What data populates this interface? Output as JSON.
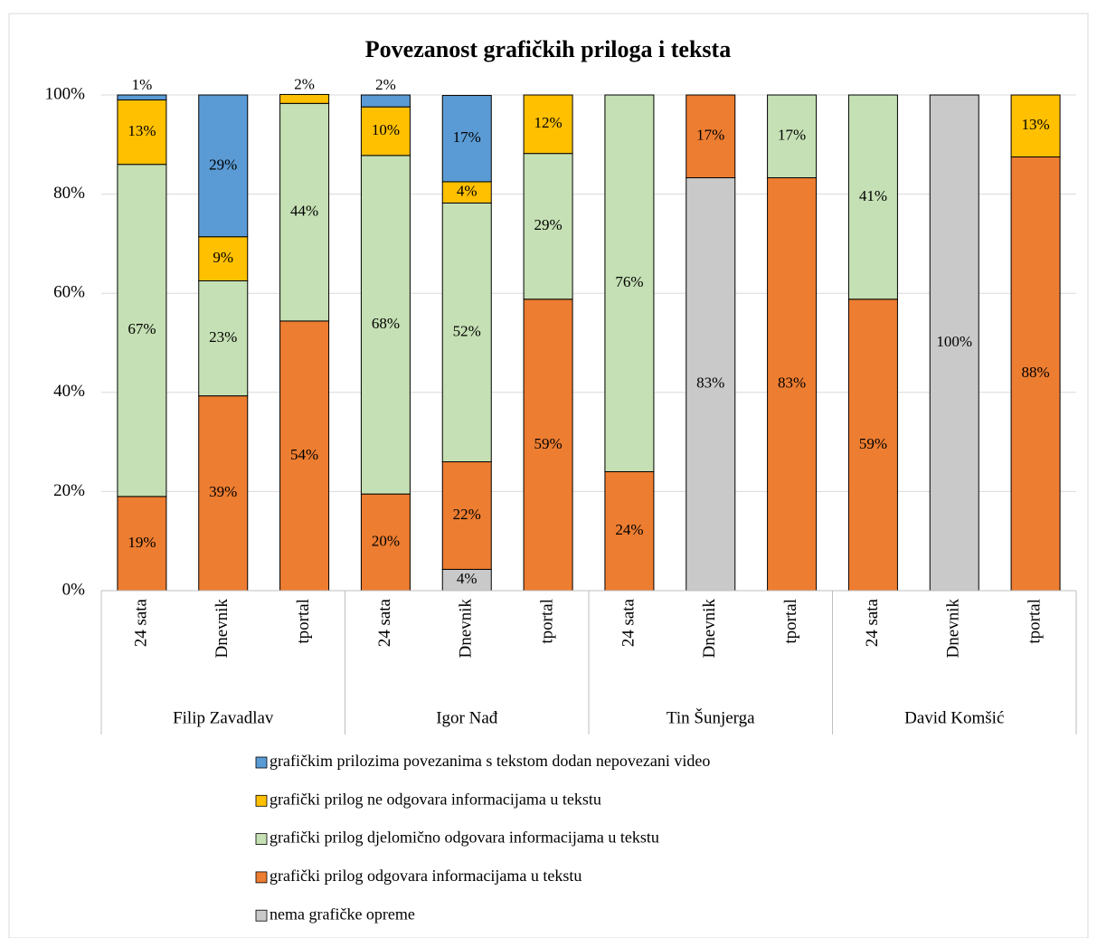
{
  "chart_data": {
    "type": "stacked_bar",
    "title": "Povezanost grafičkih priloga i teksta",
    "groups": [
      "Filip Zavadlav",
      "Igor Nađ",
      "Tin Šunjerga",
      "David Komšić"
    ],
    "categories": [
      "24 sata",
      "Dnevnik",
      "tportal",
      "24 sata",
      "Dnevnik",
      "tportal",
      "24 sata",
      "Dnevnik",
      "tportal",
      "24 sata",
      "Dnevnik",
      "tportal"
    ],
    "ylim": [
      0,
      100
    ],
    "yticks": [
      {
        "value": 0,
        "label": "0%"
      },
      {
        "value": 20,
        "label": "20%"
      },
      {
        "value": 40,
        "label": "40%"
      },
      {
        "value": 60,
        "label": "60%"
      },
      {
        "value": 80,
        "label": "80%"
      },
      {
        "value": 100,
        "label": "100%"
      }
    ],
    "grid": true,
    "series": [
      {
        "name": "nema grafičke opreme",
        "color": "#c9c9c9",
        "values": [
          null,
          null,
          null,
          null,
          4.3,
          null,
          null,
          83.3,
          null,
          null,
          100,
          null
        ],
        "value_labels": [
          null,
          null,
          null,
          null,
          "4%",
          null,
          null,
          "83%",
          null,
          null,
          "100%",
          null
        ]
      },
      {
        "name": "grafički prilog odgovara informacijama u tekstu",
        "color": "#ed7d31",
        "values": [
          19,
          39.3,
          54.4,
          19.5,
          21.7,
          58.8,
          24,
          16.7,
          83.3,
          58.8,
          null,
          87.5
        ],
        "value_labels": [
          "19%",
          "39%",
          "54%",
          "20%",
          "22%",
          "59%",
          "24%",
          "17%",
          "83%",
          "59%",
          null,
          "88%"
        ]
      },
      {
        "name": "grafički prilog djelomično odgovara informacijama u tekstu",
        "color": "#c5e0b4",
        "values": [
          67,
          23.2,
          43.9,
          68.3,
          52.2,
          29.4,
          76,
          null,
          16.7,
          41.2,
          null,
          null
        ],
        "value_labels": [
          "67%",
          "23%",
          "44%",
          "68%",
          "52%",
          "29%",
          "76%",
          null,
          "17%",
          "41%",
          null,
          null
        ]
      },
      {
        "name": "grafički prilog ne odgovara informacijama u tekstu",
        "color": "#ffc000",
        "values": [
          13,
          8.9,
          1.8,
          9.8,
          4.3,
          11.8,
          null,
          null,
          null,
          null,
          null,
          12.5
        ],
        "value_labels": [
          "13%",
          "9%",
          "2%",
          "10%",
          "4%",
          "12%",
          null,
          null,
          null,
          null,
          null,
          "13%"
        ]
      },
      {
        "name": "grafičkim prilozima povezanima s tekstom dodan nepovezani video",
        "color": "#5b9bd5",
        "values": [
          1,
          28.6,
          null,
          2.4,
          17.4,
          null,
          null,
          null,
          null,
          null,
          null,
          null
        ],
        "value_labels": [
          "1%",
          "29%",
          null,
          "2%",
          "17%",
          null,
          null,
          null,
          null,
          null,
          null,
          null
        ]
      }
    ]
  }
}
